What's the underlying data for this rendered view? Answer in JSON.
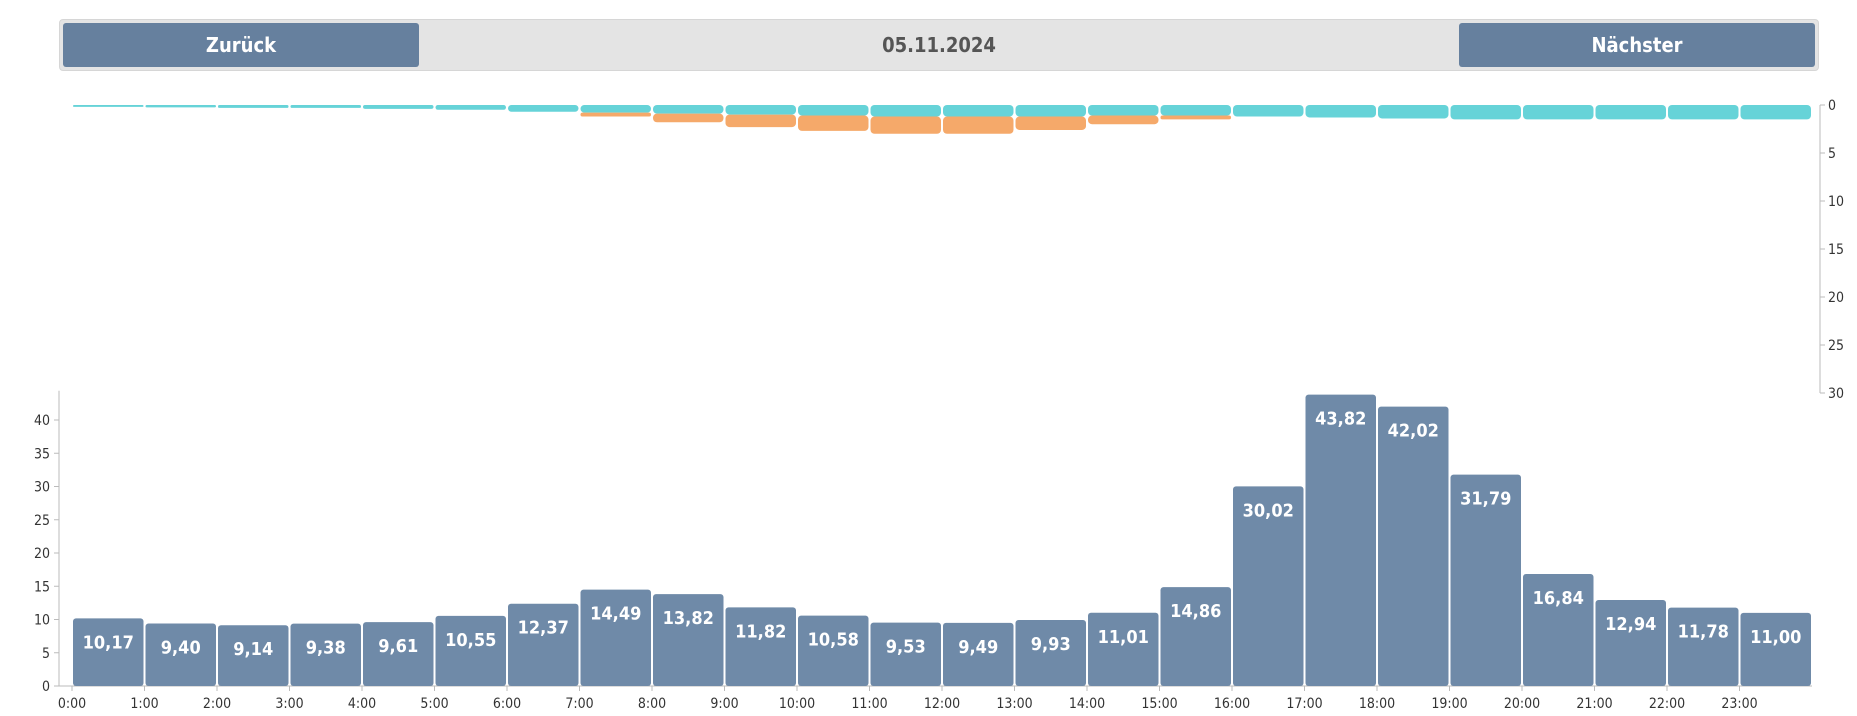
{
  "navigation": {
    "prev_label": "Zurück",
    "date": "05.11.2024",
    "next_label": "Nächster"
  },
  "colors": {
    "bar": "#6f8aa8",
    "teal": "#66d3d8",
    "orange": "#f5a96a",
    "axis": "#bbbbbb"
  },
  "chart_data": [
    {
      "type": "bar",
      "ylim": [
        0,
        45
      ],
      "y_ticks": [
        "0",
        "5",
        "10",
        "15",
        "20",
        "25",
        "30",
        "35",
        "40"
      ],
      "categories": [
        "0:00",
        "1:00",
        "2:00",
        "3:00",
        "4:00",
        "5:00",
        "6:00",
        "7:00",
        "8:00",
        "9:00",
        "10:00",
        "11:00",
        "12:00",
        "13:00",
        "14:00",
        "15:00",
        "16:00",
        "17:00",
        "18:00",
        "19:00",
        "20:00",
        "21:00",
        "22:00",
        "23:00"
      ],
      "values": [
        10.17,
        9.4,
        9.14,
        9.38,
        9.61,
        10.55,
        12.37,
        14.49,
        13.82,
        11.82,
        10.58,
        9.53,
        9.49,
        9.93,
        11.01,
        14.86,
        30.02,
        43.82,
        42.02,
        31.79,
        16.84,
        12.94,
        11.78,
        11.0
      ],
      "value_labels": [
        "10,17",
        "9,40",
        "9,14",
        "9,38",
        "9,61",
        "10,55",
        "12,37",
        "14,49",
        "13,82",
        "11,82",
        "10,58",
        "9,53",
        "9,49",
        "9,93",
        "11,01",
        "14,86",
        "30,02",
        "43,82",
        "42,02",
        "31,79",
        "16,84",
        "12,94",
        "11,78",
        "11,00"
      ]
    },
    {
      "type": "bar",
      "ylim": [
        0,
        30
      ],
      "y_axis_inverted": true,
      "y_ticks": [
        "0",
        "5",
        "10",
        "15",
        "20",
        "25",
        "30"
      ],
      "series": [
        {
          "color": "#66d3d8",
          "values": [
            0.2,
            0.25,
            0.3,
            0.3,
            0.4,
            0.5,
            0.7,
            0.8,
            0.9,
            1.0,
            1.1,
            1.2,
            1.2,
            1.2,
            1.1,
            1.1,
            1.2,
            1.3,
            1.4,
            1.5,
            1.5,
            1.5,
            1.5,
            1.5
          ]
        },
        {
          "color": "#f5a96a",
          "values": [
            0,
            0,
            0,
            0,
            0,
            0,
            0,
            0.4,
            0.9,
            1.3,
            1.6,
            1.8,
            1.8,
            1.4,
            0.9,
            0.4,
            0,
            0,
            0,
            0,
            0,
            0,
            0,
            0
          ]
        }
      ]
    }
  ]
}
